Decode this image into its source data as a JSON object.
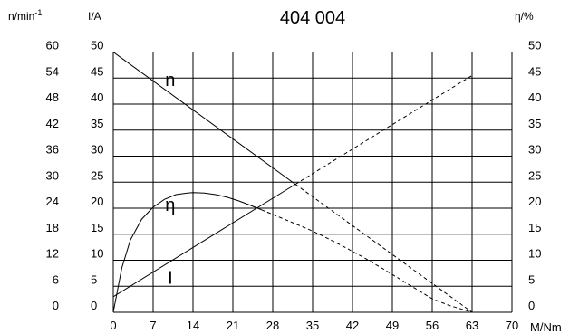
{
  "chart_data": {
    "type": "line",
    "title": "404 004",
    "x_axis": {
      "label": "M/Nm",
      "min": 0,
      "max": 70,
      "ticks": [
        0,
        7,
        14,
        21,
        28,
        35,
        42,
        49,
        56,
        63,
        70
      ]
    },
    "y_axes": {
      "speed": {
        "label_main": "n/min",
        "label_exp": "-1",
        "min": 0,
        "max": 60,
        "ticks": [
          0,
          6,
          12,
          18,
          24,
          30,
          36,
          42,
          48,
          54,
          60
        ]
      },
      "current": {
        "label": "I/A",
        "min": 0,
        "max": 50,
        "ticks": [
          0,
          5,
          10,
          15,
          20,
          25,
          30,
          35,
          40,
          45,
          50
        ]
      },
      "efficiency": {
        "label": "η/%",
        "min": 0,
        "max": 50,
        "ticks": [
          0,
          5,
          10,
          15,
          20,
          25,
          30,
          35,
          40,
          45,
          50
        ]
      }
    },
    "grid": true,
    "series": [
      {
        "name": "n",
        "axis": "speed",
        "x": [
          0,
          32,
          63
        ],
        "y": [
          60,
          29.5,
          0
        ],
        "solid_until_x": 32
      },
      {
        "name": "I",
        "axis": "current",
        "x": [
          0,
          32,
          63
        ],
        "y": [
          3,
          24.6,
          45.5
        ],
        "solid_until_x": 32
      },
      {
        "name": "η",
        "axis": "efficiency",
        "x": [
          0,
          1.5,
          3,
          5,
          7,
          9,
          11,
          13,
          14,
          16,
          18,
          20,
          22,
          24,
          26,
          28,
          30,
          32,
          35,
          38,
          41,
          44,
          47,
          50,
          53,
          56,
          59,
          63
        ],
        "y": [
          0,
          8.5,
          13.9,
          17.9,
          20.2,
          21.7,
          22.6,
          22.9,
          23.0,
          22.9,
          22.6,
          22.1,
          21.4,
          20.6,
          19.7,
          18.8,
          17.9,
          17.0,
          15.6,
          14.0,
          12.3,
          10.5,
          8.6,
          6.6,
          4.6,
          2.6,
          1.3,
          0
        ],
        "solid_until_x": 26
      }
    ],
    "series_labels": [
      {
        "text": "n",
        "series": "n",
        "x": 10,
        "y": 43.5,
        "axis": "current"
      },
      {
        "text": "η",
        "series": "η",
        "x": 10,
        "y": 19.5,
        "axis": "current"
      },
      {
        "text": "I",
        "series": "I",
        "x": 10,
        "y": 5.5,
        "axis": "current"
      }
    ]
  }
}
